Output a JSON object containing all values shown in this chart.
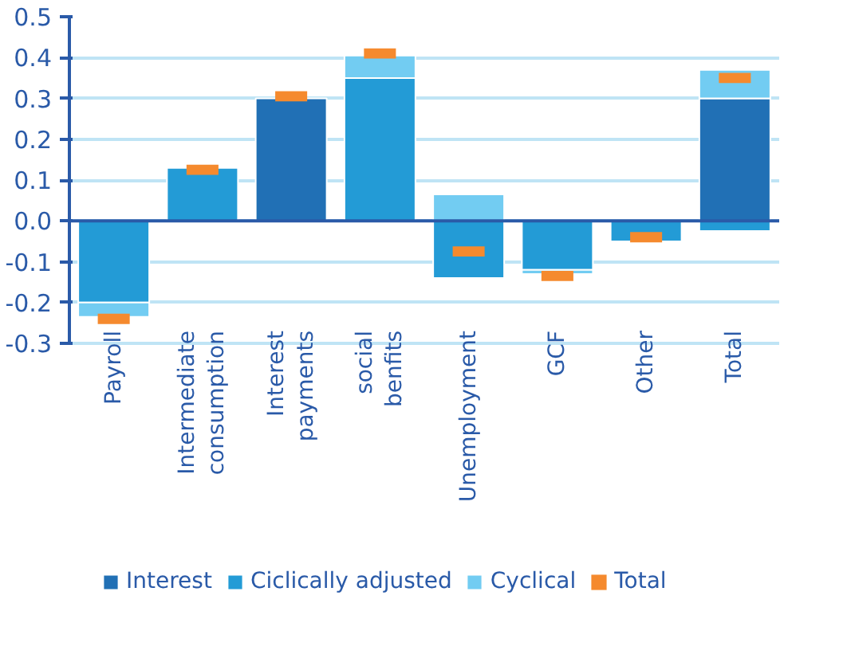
{
  "chart_data": {
    "type": "bar",
    "stacked": true,
    "categories": [
      "Payroll",
      "Intermediate\nconsumption",
      "Interest\npayments",
      "social\nbenfits",
      "Unemployment",
      "GCF",
      "Other",
      "Total"
    ],
    "series": [
      {
        "name": "Interest",
        "color": "#2170b5",
        "values": [
          0,
          0,
          0.3,
          0,
          0,
          0,
          0,
          0.3
        ]
      },
      {
        "name": "Ciclically adjusted",
        "color": "#239bd6",
        "values": [
          -0.2,
          0.13,
          0,
          0.35,
          -0.14,
          -0.12,
          -0.05,
          -0.025
        ]
      },
      {
        "name": "Cyclical",
        "color": "#72ccf2",
        "values": [
          -0.035,
          0,
          0,
          0.055,
          0.065,
          -0.01,
          0,
          0.07
        ]
      },
      {
        "name": "Total",
        "type": "scatter",
        "color": "#f58a2e",
        "values": [
          -0.24,
          0.125,
          0.305,
          0.41,
          -0.075,
          -0.135,
          -0.04,
          0.35
        ]
      }
    ],
    "ylim": [
      -0.3,
      0.5
    ],
    "yticks": [
      -0.3,
      -0.2,
      -0.1,
      {
        "value": 0,
        "label": "0.0"
      },
      0.1,
      0.2,
      0.3,
      0.4,
      0.5
    ],
    "ref_lines": [
      {
        "axis": "y",
        "value": 0,
        "color": "#2a5aa8"
      }
    ],
    "grid": "y",
    "legend": "bottom"
  }
}
